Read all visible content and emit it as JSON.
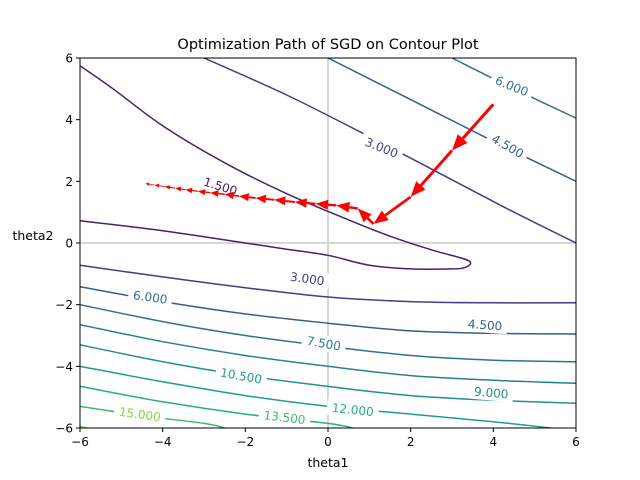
{
  "chart_data": {
    "type": "contour",
    "title": "Optimization Path of SGD on Contour Plot",
    "xlabel": "theta1",
    "ylabel": "theta2",
    "xlim": [
      -6,
      6
    ],
    "ylim": [
      -6,
      6
    ],
    "xticks": [
      "−6",
      "−4",
      "−2",
      "0",
      "2",
      "4",
      "6"
    ],
    "yticks": [
      "−6",
      "−4",
      "−2",
      "0",
      "2",
      "4",
      "6"
    ],
    "reference_lines": {
      "x": 0,
      "y": 0,
      "color": "#c8c8c8"
    },
    "contours": [
      {
        "level": "1.500",
        "color": "#46226f",
        "segments": [
          [
            [
              -6,
              0.72
            ],
            [
              -4,
              0.4
            ],
            [
              -2,
              0.0
            ],
            [
              -1,
              -0.2
            ],
            [
              0,
              -0.4
            ],
            [
              1,
              -0.72
            ],
            [
              2,
              -0.84
            ],
            [
              3,
              -0.84
            ],
            [
              3.3,
              -0.8
            ],
            [
              3.45,
              -0.66
            ],
            [
              3.3,
              -0.52
            ],
            [
              2.5,
              -0.22
            ],
            [
              1.5,
              0.22
            ],
            [
              0.5,
              0.75
            ],
            [
              -1,
              1.6
            ],
            [
              -2.5,
              2.6
            ],
            [
              -4,
              3.8
            ],
            [
              -5.2,
              5
            ],
            [
              -6,
              5.75
            ]
          ]
        ]
      },
      {
        "level": "3.000",
        "color": "#3f3f88",
        "segments": [
          [
            [
              -6,
              -0.72
            ],
            [
              -4,
              -1.1
            ],
            [
              -2,
              -1.45
            ],
            [
              0,
              -1.75
            ],
            [
              2,
              -1.9
            ],
            [
              4,
              -1.94
            ],
            [
              6,
              -1.94
            ]
          ],
          [
            [
              -3,
              6
            ],
            [
              -1,
              4.8
            ],
            [
              1,
              3.45
            ],
            [
              3,
              2.05
            ],
            [
              4.5,
              1.0
            ],
            [
              6,
              0
            ]
          ]
        ]
      },
      {
        "level": "4.500",
        "color": "#355e8d",
        "segments": [
          [
            [
              -6,
              -1.42
            ],
            [
              -4,
              -1.9
            ],
            [
              -2,
              -2.3
            ],
            [
              0,
              -2.6
            ],
            [
              2,
              -2.85
            ],
            [
              4,
              -2.93
            ],
            [
              6,
              -2.95
            ]
          ],
          [
            [
              0,
              6
            ],
            [
              2,
              4.65
            ],
            [
              4,
              3.3
            ],
            [
              6,
              2.0
            ]
          ]
        ]
      },
      {
        "level": "6.000",
        "color": "#2c728e",
        "segments": [
          [
            [
              -6,
              -2.0
            ],
            [
              -4,
              -2.55
            ],
            [
              -2,
              -3.0
            ],
            [
              0,
              -3.35
            ],
            [
              2,
              -3.65
            ],
            [
              4,
              -3.8
            ],
            [
              6,
              -3.85
            ]
          ],
          [
            [
              3,
              6
            ],
            [
              4.5,
              5
            ],
            [
              6,
              4.05
            ]
          ]
        ]
      },
      {
        "level": "7.500",
        "color": "#26828e",
        "segments": [
          [
            [
              -6,
              -2.65
            ],
            [
              -4,
              -3.2
            ],
            [
              -2,
              -3.65
            ],
            [
              0,
              -4.0
            ],
            [
              2,
              -4.3
            ],
            [
              4,
              -4.45
            ],
            [
              6,
              -4.55
            ]
          ]
        ]
      },
      {
        "level": "9.000",
        "color": "#21918c",
        "segments": [
          [
            [
              -6,
              -3.3
            ],
            [
              -4,
              -3.85
            ],
            [
              -2,
              -4.3
            ],
            [
              0,
              -4.65
            ],
            [
              2,
              -4.95
            ],
            [
              4,
              -5.1
            ],
            [
              6,
              -5.2
            ]
          ]
        ]
      },
      {
        "level": "10.500",
        "color": "#1f9e89",
        "segments": [
          [
            [
              -6,
              -4.0
            ],
            [
              -4,
              -4.5
            ],
            [
              -2,
              -4.95
            ],
            [
              0,
              -5.3
            ],
            [
              2,
              -5.55
            ],
            [
              4,
              -5.8
            ],
            [
              5.4,
              -6
            ]
          ]
        ]
      },
      {
        "level": "12.000",
        "color": "#28ae80",
        "segments": [
          [
            [
              -6,
              -4.65
            ],
            [
              -4,
              -5.15
            ],
            [
              -2,
              -5.55
            ],
            [
              0,
              -5.85
            ],
            [
              0.6,
              -6
            ]
          ]
        ]
      },
      {
        "level": "13.500",
        "color": "#3bbb75",
        "segments": [
          [
            [
              -6,
              -5.3
            ],
            [
              -4.5,
              -5.6
            ],
            [
              -3,
              -5.85
            ],
            [
              -2.5,
              -6
            ]
          ]
        ]
      },
      {
        "level": "15.000",
        "color": "#86d549",
        "segments": [
          [
            [
              -6,
              -5.95
            ],
            [
              -5.8,
              -6
            ]
          ]
        ]
      }
    ],
    "contour_labels": [
      {
        "text": "1.500",
        "x": -2.6,
        "y": 1.85,
        "rotation": 17,
        "color": "#46226f"
      },
      {
        "text": "3.000",
        "x": 1.3,
        "y": 3.1,
        "rotation": 22,
        "color": "#3f3f88"
      },
      {
        "text": "3.000",
        "x": -0.5,
        "y": -1.15,
        "rotation": 8,
        "color": "#3f3f88"
      },
      {
        "text": "4.500",
        "x": 4.35,
        "y": 3.15,
        "rotation": 30,
        "color": "#355e8d"
      },
      {
        "text": "4.500",
        "x": 3.8,
        "y": -2.65,
        "rotation": 4,
        "color": "#355e8d"
      },
      {
        "text": "6.000",
        "x": 4.45,
        "y": 5.1,
        "rotation": 22,
        "color": "#2c728e"
      },
      {
        "text": "6.000",
        "x": -4.3,
        "y": -1.75,
        "rotation": 8,
        "color": "#2c728e"
      },
      {
        "text": "7.500",
        "x": -0.1,
        "y": -3.25,
        "rotation": 10,
        "color": "#26828e"
      },
      {
        "text": "9.000",
        "x": 3.95,
        "y": -4.85,
        "rotation": 5,
        "color": "#21918c"
      },
      {
        "text": "10.500",
        "x": -2.1,
        "y": -4.3,
        "rotation": 10,
        "color": "#1f9e89"
      },
      {
        "text": "12.000",
        "x": 0.6,
        "y": -5.4,
        "rotation": 6,
        "color": "#28ae80"
      },
      {
        "text": "13.500",
        "x": -1.05,
        "y": -5.65,
        "rotation": 7,
        "color": "#3bbb75"
      },
      {
        "text": "15.000",
        "x": -4.55,
        "y": -5.55,
        "rotation": 8,
        "color": "#86d549"
      }
    ],
    "path": {
      "color": "#ff0000",
      "points": [
        [
          4,
          4.5
        ],
        [
          3.0,
          3.0
        ],
        [
          2.0,
          1.5
        ],
        [
          1.1,
          0.62
        ],
        [
          0.72,
          1.12
        ],
        [
          0.2,
          1.22
        ],
        [
          -0.3,
          1.27
        ],
        [
          -0.8,
          1.33
        ],
        [
          -1.3,
          1.4
        ],
        [
          -1.75,
          1.46
        ],
        [
          -2.15,
          1.52
        ],
        [
          -2.5,
          1.58
        ],
        [
          -2.85,
          1.63
        ],
        [
          -3.15,
          1.68
        ],
        [
          -3.45,
          1.73
        ],
        [
          -3.7,
          1.78
        ],
        [
          -3.95,
          1.83
        ],
        [
          -4.2,
          1.88
        ],
        [
          -4.42,
          1.93
        ]
      ]
    }
  }
}
